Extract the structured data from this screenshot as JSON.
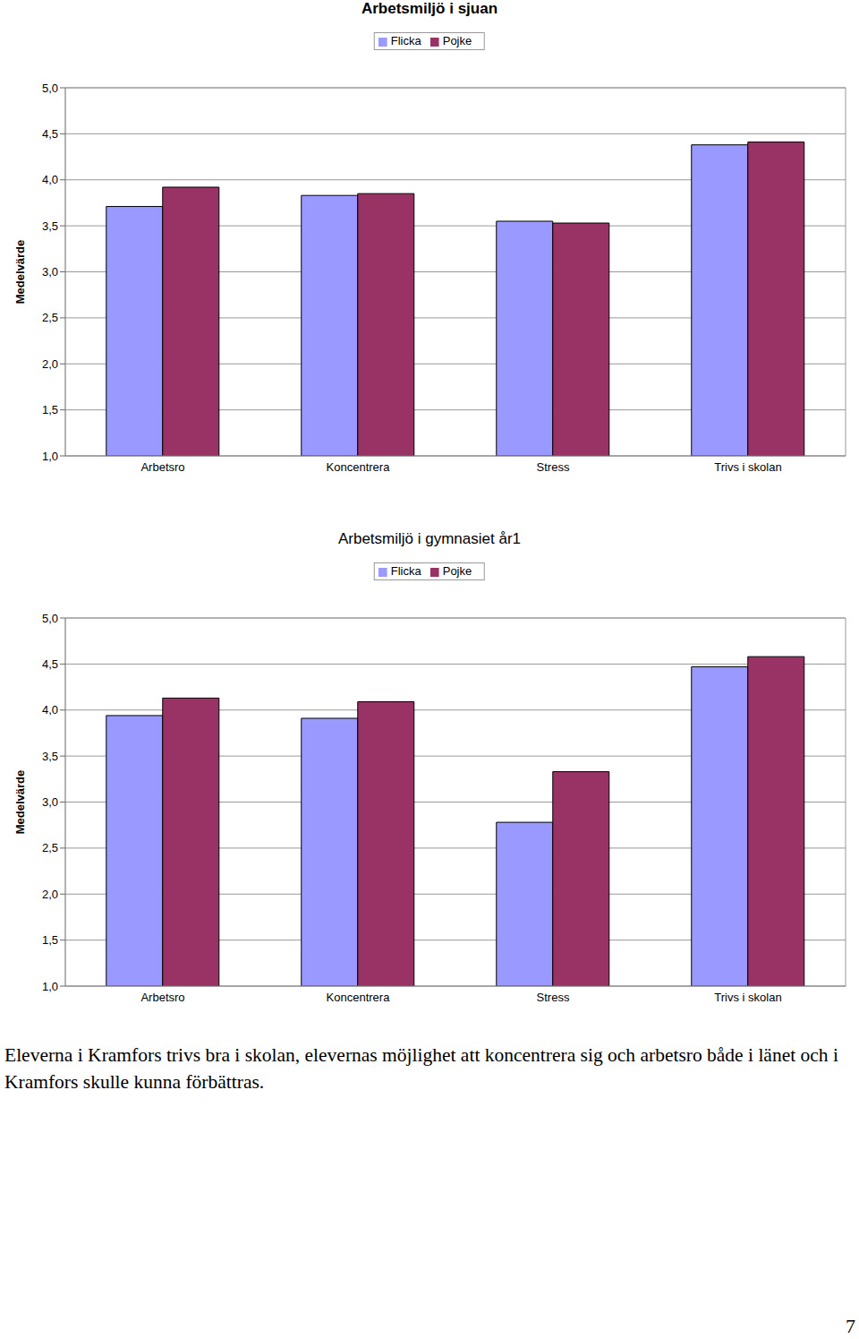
{
  "chart_data": [
    {
      "type": "bar",
      "title": "Arbetsmiljö i sjuan",
      "y_label": "Medelvärde",
      "categories": [
        "Arbetsro",
        "Koncentrera",
        "Stress",
        "Trivs i skolan"
      ],
      "series": [
        {
          "name": "Flicka",
          "color": "#9999ff",
          "values": [
            3.71,
            3.83,
            3.55,
            4.38
          ]
        },
        {
          "name": "Pojke",
          "color": "#993366",
          "values": [
            3.92,
            3.85,
            3.53,
            4.41
          ]
        }
      ],
      "ylim": [
        1,
        5
      ],
      "yticks": [
        {
          "value": 1,
          "label": "1,0"
        },
        {
          "value": 1.5,
          "label": "1,5"
        },
        {
          "value": 2,
          "label": "2,0"
        },
        {
          "value": 2.5,
          "label": "2,5"
        },
        {
          "value": 3,
          "label": "3,0"
        },
        {
          "value": 3.5,
          "label": "3,5"
        },
        {
          "value": 4,
          "label": "4,0"
        },
        {
          "value": 4.5,
          "label": "4,5"
        },
        {
          "value": 5,
          "label": "5,0"
        }
      ],
      "grid": true,
      "legend": "top"
    },
    {
      "type": "bar",
      "title": "Arbetsmiljö i gymnasiet år1",
      "y_label": "Medelvärde",
      "categories": [
        "Arbetsro",
        "Koncentrera",
        "Stress",
        "Trivs i skolan"
      ],
      "series": [
        {
          "name": "Flicka",
          "color": "#9999ff",
          "values": [
            3.94,
            3.91,
            2.78,
            4.47
          ]
        },
        {
          "name": "Pojke",
          "color": "#993366",
          "values": [
            4.13,
            4.09,
            3.33,
            4.58
          ]
        }
      ],
      "ylim": [
        1,
        5
      ],
      "yticks": [
        {
          "value": 1,
          "label": "1,0"
        },
        {
          "value": 1.5,
          "label": "1,5"
        },
        {
          "value": 2,
          "label": "2,0"
        },
        {
          "value": 2.5,
          "label": "2,5"
        },
        {
          "value": 3,
          "label": "3,0"
        },
        {
          "value": 3.5,
          "label": "3,5"
        },
        {
          "value": 4,
          "label": "4,0"
        },
        {
          "value": 4.5,
          "label": "4,5"
        },
        {
          "value": 5,
          "label": "5,0"
        }
      ],
      "grid": true,
      "legend": "top"
    }
  ],
  "text": "Eleverna i Kramfors trivs bra i skolan, elevernas möjlighet att koncentrera sig och arbetsro både i länet och i Kramfors skulle kunna förbättras.",
  "page_number": 7
}
